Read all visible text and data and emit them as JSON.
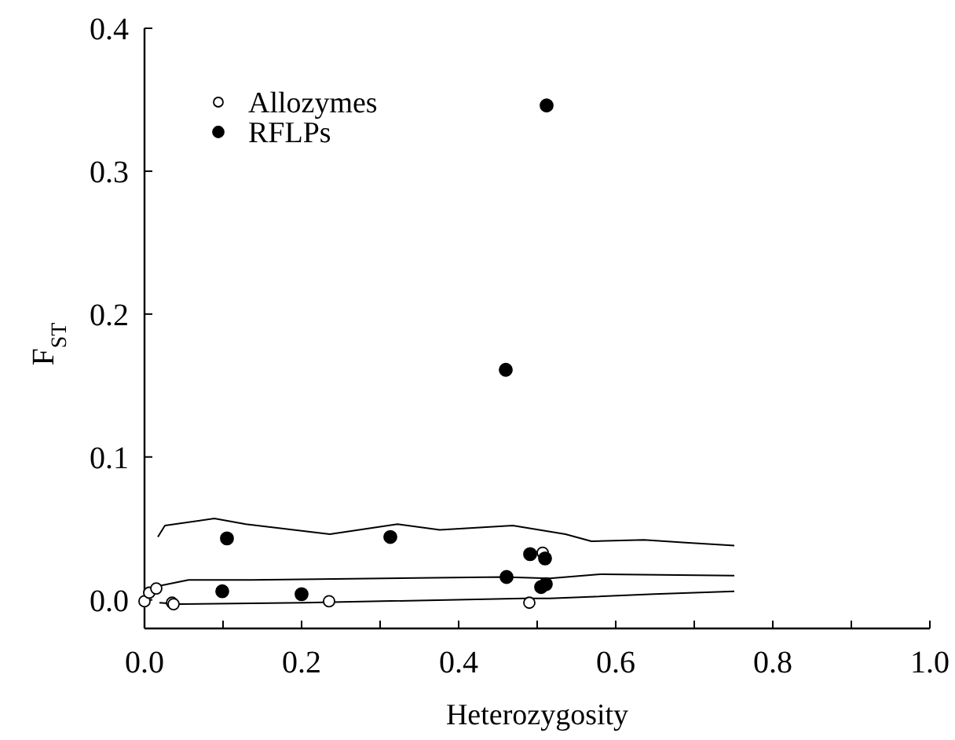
{
  "chart_data": {
    "type": "scatter",
    "xlabel": "Heterozygosity",
    "ylabel": "F$_{ST}$",
    "xlim": [
      0,
      1.0
    ],
    "ylim": [
      -0.02,
      0.4
    ],
    "xticks": [
      {
        "value": 0,
        "label": "0.0"
      },
      {
        "value": 0.1,
        "label": null
      },
      {
        "value": 0.2,
        "label": "0.2"
      },
      {
        "value": 0.3,
        "label": null
      },
      {
        "value": 0.4,
        "label": "0.4"
      },
      {
        "value": 0.5,
        "label": null
      },
      {
        "value": 0.6,
        "label": "0.6"
      },
      {
        "value": 0.7,
        "label": null
      },
      {
        "value": 0.8,
        "label": "0.8"
      },
      {
        "value": 0.9,
        "label": null
      },
      {
        "value": 1.0,
        "label": "1.0"
      }
    ],
    "yticks": [
      {
        "value": 0,
        "label": "0.0"
      },
      {
        "value": 0.1,
        "label": "0.1"
      },
      {
        "value": 0.2,
        "label": "0.2"
      },
      {
        "value": 0.3,
        "label": "0.3"
      },
      {
        "value": 0.4,
        "label": "0.4"
      }
    ],
    "grid": false,
    "legend": "top left",
    "marker": "circle",
    "series": [
      {
        "name": "Allozymes",
        "color": "#ffffff",
        "x": [
          0.0,
          0.006,
          0.015,
          0.035,
          0.037,
          0.235,
          0.49,
          0.507
        ],
        "values": [
          -0.001,
          0.005,
          0.008,
          -0.002,
          -0.003,
          -0.001,
          -0.002,
          0.033
        ]
      },
      {
        "name": "RFLPs",
        "color": "#000000",
        "x": [
          0.105,
          0.313,
          0.099,
          0.2,
          0.461,
          0.491,
          0.51,
          0.505,
          0.511,
          0.512,
          0.46
        ],
        "values": [
          0.043,
          0.044,
          0.006,
          0.004,
          0.016,
          0.032,
          0.029,
          0.009,
          0.011,
          0.346,
          0.161
        ]
      },
      {
        "type": "line",
        "color": "#000000",
        "marker": "none",
        "x": [
          0.017,
          0.026,
          0.089,
          0.129,
          0.236,
          0.322,
          0.376,
          0.469,
          0.536,
          0.569,
          0.636,
          0.689,
          0.751
        ],
        "values": [
          0.044,
          0.052,
          0.057,
          0.053,
          0.046,
          0.053,
          0.049,
          0.052,
          0.046,
          0.041,
          0.042,
          0.04,
          0.038
        ]
      },
      {
        "type": "line",
        "color": "#000000",
        "marker": "none",
        "x": [
          0.003,
          0.056,
          0.136,
          0.456,
          0.516,
          0.583,
          0.751
        ],
        "values": [
          0.008,
          0.014,
          0.014,
          0.016,
          0.015,
          0.018,
          0.017
        ]
      },
      {
        "type": "line",
        "color": "#000000",
        "marker": "none",
        "x": [
          0.019,
          0.043,
          0.203,
          0.483,
          0.516,
          0.649,
          0.751
        ],
        "values": [
          -0.002,
          -0.003,
          -0.002,
          0.001,
          0.001,
          0.004,
          0.006
        ]
      }
    ]
  }
}
